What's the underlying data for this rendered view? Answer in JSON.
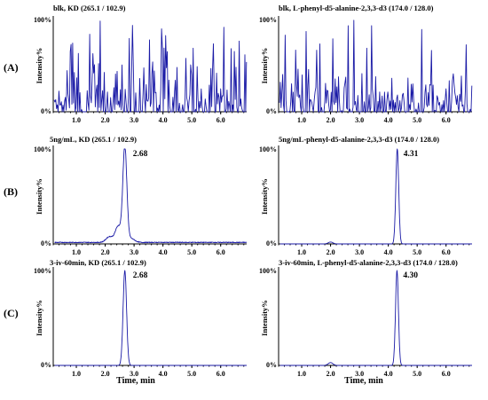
{
  "row_labels": [
    "(A)",
    "(B)",
    "(C)"
  ],
  "axis_labels": {
    "y": "Intensity%",
    "x": "Time, min"
  },
  "percent_labels": {
    "top": "100%",
    "bottom": "0%"
  },
  "chart_data": [
    {
      "id": "A1",
      "type": "line",
      "title": "blk, KD (265.1 / 102.9)",
      "xlim": [
        0.2,
        6.9
      ],
      "ylim": [
        0,
        100
      ],
      "xticks": [
        "1.0",
        "2.0",
        "3.0",
        "4.0",
        "5.0",
        "6.0"
      ],
      "mode": "noise",
      "baseline": 0,
      "noise_level": 55,
      "peak_label": ""
    },
    {
      "id": "A2",
      "type": "line",
      "title": "blk, L-phenyl-d5-alanine-2,3,3-d3 (174.0 / 128.0)",
      "xlim": [
        0.2,
        6.9
      ],
      "ylim": [
        0,
        100
      ],
      "xticks": [
        "1.0",
        "2.0",
        "3.0",
        "4.0",
        "5.0",
        "6.0"
      ],
      "mode": "noise",
      "baseline": 0,
      "noise_level": 40,
      "peak_label": ""
    },
    {
      "id": "B1",
      "type": "line",
      "title": "5ng/mL, KD (265.1 / 102.9)",
      "xlim": [
        0.2,
        6.9
      ],
      "ylim": [
        0,
        100
      ],
      "xticks": [
        "1.0",
        "2.0",
        "3.0",
        "4.0",
        "5.0",
        "6.0"
      ],
      "mode": "peaks",
      "baseline": 2,
      "peaks": [
        {
          "rt": 2.68,
          "height": 100,
          "width": 0.07
        },
        {
          "rt": 2.45,
          "height": 17,
          "width": 0.1
        },
        {
          "rt": 2.15,
          "height": 6,
          "width": 0.12
        },
        {
          "rt": 2.9,
          "height": 4,
          "width": 0.12
        }
      ],
      "peak_label": "2.68"
    },
    {
      "id": "B2",
      "type": "line",
      "title": "5ng/mL-phenyl-d5-alanine-2,3,3-d3 (174.0 / 128.0)",
      "xlim": [
        0.2,
        6.9
      ],
      "ylim": [
        0,
        100
      ],
      "xticks": [
        "1.0",
        "2.0",
        "3.0",
        "4.0",
        "5.0",
        "6.0"
      ],
      "mode": "peaks",
      "baseline": 0,
      "peaks": [
        {
          "rt": 4.31,
          "height": 100,
          "width": 0.05
        },
        {
          "rt": 2.0,
          "height": 2,
          "width": 0.08
        }
      ],
      "peak_label": "4.31"
    },
    {
      "id": "C1",
      "type": "line",
      "title": "3-iv-60min, KD (265.1 / 102.9)",
      "xlim": [
        0.2,
        6.9
      ],
      "ylim": [
        0,
        100
      ],
      "xticks": [
        "1.0",
        "2.0",
        "3.0",
        "4.0",
        "5.0",
        "6.0"
      ],
      "mode": "peaks",
      "baseline": 0,
      "peaks": [
        {
          "rt": 2.68,
          "height": 100,
          "width": 0.06
        }
      ],
      "peak_label": "2.68"
    },
    {
      "id": "C2",
      "type": "line",
      "title": "3-iv-60min, L-phenyl-d5-alanine-2,3,3-d3 (174.0 / 128.0)",
      "xlim": [
        0.2,
        6.9
      ],
      "ylim": [
        0,
        100
      ],
      "xticks": [
        "1.0",
        "2.0",
        "3.0",
        "4.0",
        "5.0",
        "6.0"
      ],
      "mode": "peaks",
      "baseline": 0,
      "peaks": [
        {
          "rt": 4.3,
          "height": 100,
          "width": 0.05
        },
        {
          "rt": 2.0,
          "height": 3,
          "width": 0.08
        }
      ],
      "peak_label": "4.30"
    }
  ]
}
